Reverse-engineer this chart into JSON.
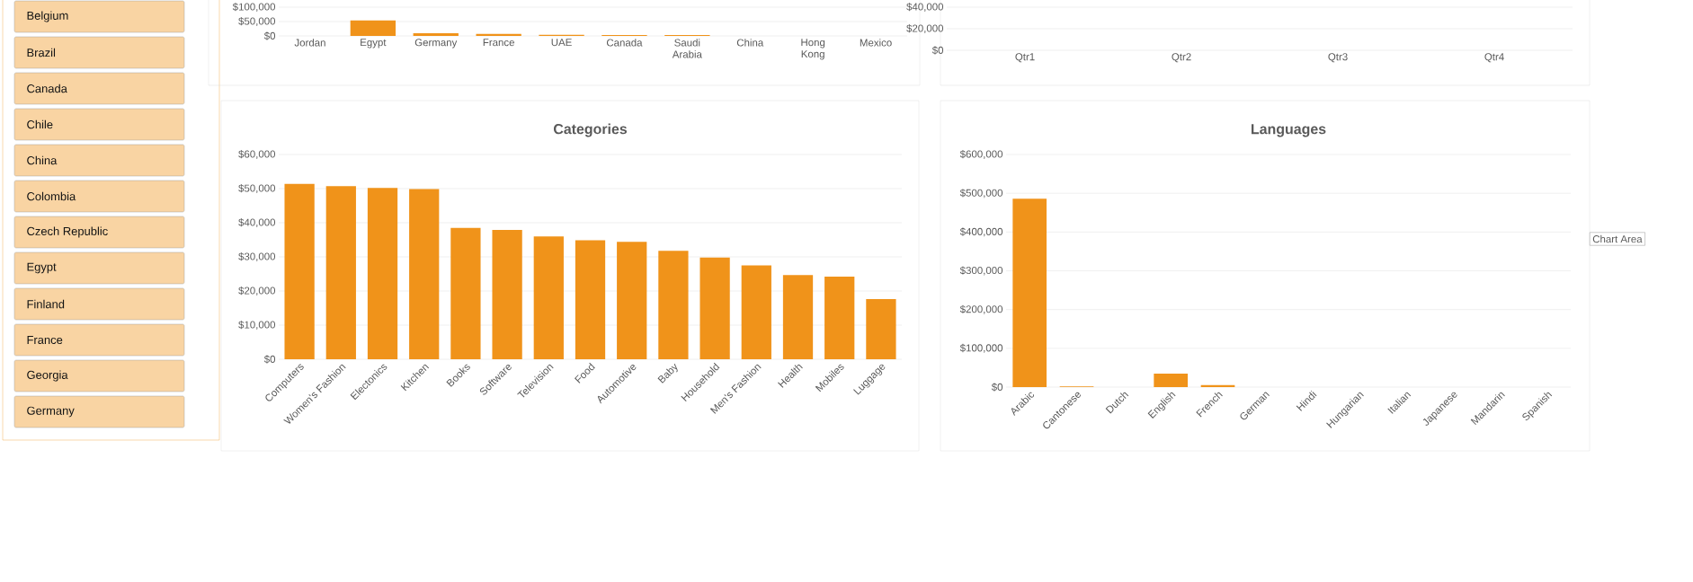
{
  "chart_data": [
    {
      "type": "other",
      "annotations": [
        "Belgium",
        "Brazil",
        "Canada",
        "Chile",
        "China",
        "Colombia",
        "Czech Republic",
        "Egypt",
        "Finland",
        "France",
        "Georgia",
        "Germany"
      ]
    },
    {
      "type": "bar",
      "categories": [
        "Jordan",
        "Egypt",
        "Germany",
        "France",
        "UAE",
        "Canada",
        "Saudi Arabia",
        "China",
        "Hong Kong",
        "Mexico"
      ],
      "values": [
        null,
        54000,
        9000,
        7000,
        4000,
        3000,
        3000,
        0,
        0,
        0
      ],
      "color": "#f0931a",
      "ylim": [
        0,
        100000
      ],
      "yticks": [
        {
          "value": 0,
          "label": "$0"
        },
        {
          "value": 50000,
          "label": "$50,000"
        },
        {
          "value": 100000,
          "label": "$100,000"
        }
      ],
      "grid": "y"
    },
    {
      "type": "bar",
      "categories": [
        "Qtr1",
        "Qtr2",
        "Qtr3",
        "Qtr4"
      ],
      "values": [
        null,
        null,
        null,
        null
      ],
      "ylim": [
        0,
        40000
      ],
      "yticks": [
        {
          "value": 0,
          "label": "$0"
        },
        {
          "value": 20000,
          "label": "$20,000"
        },
        {
          "value": 40000,
          "label": "$40,000"
        }
      ],
      "grid": "y"
    },
    {
      "type": "bar",
      "title": "Categories",
      "categories": [
        "Computers",
        "Women's Fashion",
        "Electonics",
        "Kitchen",
        "Books",
        "Software",
        "Television",
        "Food",
        "Automotive",
        "Baby",
        "Household",
        "Men's Fashion",
        "Health",
        "Mobiles",
        "Luggage"
      ],
      "values": [
        51400,
        50700,
        50200,
        49900,
        38500,
        37900,
        36000,
        34900,
        34400,
        31800,
        29800,
        27500,
        24700,
        24200,
        17600
      ],
      "color": "#f0931a",
      "ylim": [
        0,
        60000
      ],
      "yticks": [
        {
          "value": 0,
          "label": "$0"
        },
        {
          "value": 10000,
          "label": "$10,000"
        },
        {
          "value": 20000,
          "label": "$20,000"
        },
        {
          "value": 30000,
          "label": "$30,000"
        },
        {
          "value": 40000,
          "label": "$40,000"
        },
        {
          "value": 50000,
          "label": "$50,000"
        },
        {
          "value": 60000,
          "label": "$60,000"
        }
      ],
      "grid": "y"
    },
    {
      "type": "bar",
      "title": "Languages",
      "categories": [
        "Arabic",
        "Cantonese",
        "Dutch",
        "English",
        "French",
        "German",
        "Hindi",
        "Hungarian",
        "Italian",
        "Japanese",
        "Mandarin",
        "Spanish"
      ],
      "values": [
        486000,
        2000,
        0,
        35000,
        5000,
        0,
        0,
        0,
        0,
        0,
        0,
        0
      ],
      "color": "#f0931a",
      "ylim": [
        0,
        600000
      ],
      "yticks": [
        {
          "value": 0,
          "label": "$0"
        },
        {
          "value": 100000,
          "label": "$100,000"
        },
        {
          "value": 200000,
          "label": "$200,000"
        },
        {
          "value": 300000,
          "label": "$300,000"
        },
        {
          "value": 400000,
          "label": "$400,000"
        },
        {
          "value": 500000,
          "label": "$500,000"
        },
        {
          "value": 600000,
          "label": "$600,000"
        }
      ],
      "grid": "y",
      "annotations": [
        "Chart Area"
      ]
    }
  ]
}
